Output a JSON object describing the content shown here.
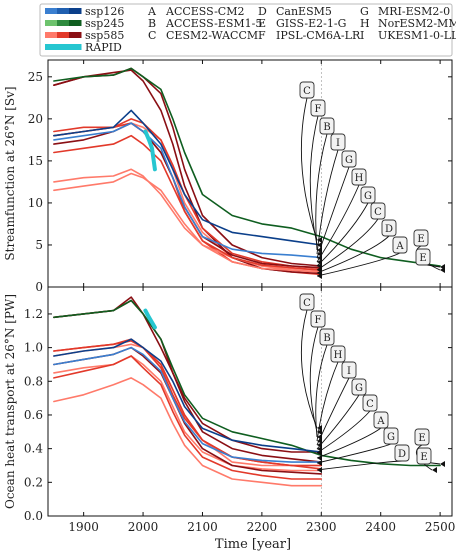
{
  "legend": {
    "scenarios": [
      {
        "name": "ssp126",
        "colors": [
          "#3a7fd0",
          "#1f5fb0",
          "#0b3f8a"
        ]
      },
      {
        "name": "ssp245",
        "colors": [
          "#6dc36d",
          "#2e8b3e",
          "#0f5e20"
        ]
      },
      {
        "name": "ssp585",
        "colors": [
          "#ff7a6a",
          "#e2392a",
          "#8a0f14"
        ]
      },
      {
        "name": "RAPID",
        "colors": [
          "#26c6d0"
        ]
      }
    ],
    "models": [
      {
        "letter": "A",
        "name": "ACCESS-CM2"
      },
      {
        "letter": "B",
        "name": "ACCESS-ESM1-5"
      },
      {
        "letter": "C",
        "name": "CESM2-WACCM"
      },
      {
        "letter": "D",
        "name": "CanESM5"
      },
      {
        "letter": "E",
        "name": "GISS-E2-1-G"
      },
      {
        "letter": "F",
        "name": "IPSL-CM6A-LR"
      },
      {
        "letter": "G",
        "name": "MRI-ESM2-0"
      },
      {
        "letter": "H",
        "name": "NorESM2-MM"
      },
      {
        "letter": "I",
        "name": "UKESM1-0-LL"
      }
    ]
  },
  "xlabel": "Time [year]",
  "chart_data": [
    {
      "type": "line",
      "ylabel": "Streamfunction at 26°N [Sv]",
      "xlim": [
        1840,
        2520
      ],
      "ylim": [
        0,
        27
      ],
      "xticks": [
        1900,
        2000,
        2100,
        2200,
        2300,
        2400,
        2500
      ],
      "yticks": [
        0,
        5,
        10,
        15,
        20,
        25
      ],
      "series": [
        {
          "model": "A",
          "scenario": "ssp585",
          "x": [
            1850,
            1900,
            1950,
            1980,
            2000,
            2030,
            2050,
            2070,
            2100,
            2150,
            2200,
            2250,
            2300
          ],
          "y": [
            18,
            18.5,
            19,
            19.5,
            19,
            17.5,
            14,
            10,
            6.5,
            3.5,
            2.5,
            2,
            1.8
          ]
        },
        {
          "model": "B",
          "scenario": "ssp585",
          "x": [
            1850,
            1900,
            1950,
            1980,
            2000,
            2030,
            2050,
            2070,
            2100,
            2150,
            2200,
            2250,
            2300
          ],
          "y": [
            18.5,
            19,
            19,
            19.5,
            18.5,
            16,
            13,
            9,
            5.5,
            3,
            2.2,
            1.8,
            1.5
          ]
        },
        {
          "model": "C",
          "scenario": "ssp585",
          "x": [
            1850,
            1900,
            1950,
            1980,
            2000,
            2030,
            2050,
            2070,
            2100,
            2150,
            2200,
            2250,
            2300
          ],
          "y": [
            24,
            25,
            25.5,
            25.8,
            24.5,
            21,
            17,
            12,
            7,
            3.5,
            2.2,
            1.8,
            1.6
          ]
        },
        {
          "model": "D",
          "scenario": "ssp585",
          "x": [
            1850,
            1900,
            1950,
            1980,
            2000,
            2030,
            2050,
            2070,
            2100,
            2150,
            2200,
            2250,
            2300
          ],
          "y": [
            11.5,
            12,
            12.5,
            13.5,
            13,
            11.5,
            9.5,
            7.5,
            5,
            3,
            2.2,
            2,
            1.8
          ]
        },
        {
          "model": "E",
          "scenario": "ssp585",
          "x": [
            1850,
            1900,
            1950,
            1980,
            2000,
            2030,
            2050,
            2070,
            2100,
            2150,
            2200,
            2250,
            2300
          ],
          "y": [
            24,
            25,
            25.2,
            26,
            25,
            23,
            19,
            14,
            8.5,
            5,
            3.5,
            2.8,
            2.5
          ]
        },
        {
          "model": "F",
          "scenario": "ssp585",
          "x": [
            1850,
            1900,
            1950,
            1980,
            2000,
            2030,
            2050,
            2070,
            2100,
            2150,
            2200,
            2250,
            2300
          ],
          "y": [
            12.5,
            13,
            13.2,
            14,
            13.2,
            11,
            9,
            7,
            5,
            3.5,
            2.5,
            2.2,
            2
          ]
        },
        {
          "model": "G",
          "scenario": "ssp585",
          "x": [
            1850,
            1900,
            1950,
            1980,
            2000,
            2030,
            2050,
            2070,
            2100,
            2150,
            2200,
            2250,
            2300
          ],
          "y": [
            16,
            16.5,
            17,
            18,
            17,
            15,
            12,
            9,
            5.5,
            3.5,
            2.6,
            2.3,
            2
          ]
        },
        {
          "model": "H",
          "scenario": "ssp585",
          "x": [
            1850,
            1900,
            1950,
            1980,
            2000,
            2030,
            2050,
            2070,
            2100,
            2150,
            2200,
            2250,
            2300
          ],
          "y": [
            18,
            18.5,
            19,
            20,
            19.5,
            17.5,
            14.5,
            11,
            7,
            4,
            3,
            2.5,
            2.2
          ]
        },
        {
          "model": "I",
          "scenario": "ssp585",
          "x": [
            1850,
            1900,
            1950,
            1980,
            2000,
            2030,
            2050,
            2070,
            2100,
            2150,
            2200,
            2250,
            2300
          ],
          "y": [
            17,
            17.5,
            18.5,
            19.5,
            18.5,
            16,
            13,
            9.5,
            6,
            3.8,
            2.8,
            2.5,
            2.3
          ]
        },
        {
          "model": "E",
          "scenario": "ssp245",
          "x": [
            1850,
            1900,
            1950,
            1980,
            2000,
            2030,
            2050,
            2070,
            2100,
            2150,
            2200,
            2250,
            2300,
            2350,
            2400,
            2450,
            2500
          ],
          "y": [
            24.5,
            25,
            25.2,
            26,
            25,
            23.5,
            20,
            16,
            11,
            8.5,
            7.5,
            7,
            6,
            4.5,
            3.5,
            3,
            2.5
          ]
        },
        {
          "model": "C",
          "scenario": "ssp126",
          "x": [
            1850,
            1900,
            1950,
            1980,
            2000,
            2030,
            2050,
            2070,
            2100,
            2150,
            2200,
            2250,
            2300
          ],
          "y": [
            18,
            18.5,
            19,
            21,
            19.5,
            17,
            14,
            11,
            8,
            6.5,
            6,
            5.5,
            5
          ]
        },
        {
          "model": "A",
          "scenario": "ssp126",
          "x": [
            1850,
            1900,
            1950,
            1980,
            2000,
            2030,
            2050,
            2070,
            2100,
            2150,
            2200,
            2250,
            2300
          ],
          "y": [
            17.5,
            18,
            18.5,
            19.5,
            18.5,
            16.5,
            13,
            9.5,
            6,
            4.5,
            4,
            3.8,
            3.5
          ]
        },
        {
          "model": "rapid",
          "scenario": "RAPID",
          "x": [
            2004,
            2010,
            2015,
            2020
          ],
          "y": [
            18.5,
            17.5,
            16.5,
            14
          ]
        }
      ],
      "labels": [
        "C",
        "F",
        "B",
        "I",
        "G",
        "H",
        "G",
        "C",
        "D",
        "A",
        "E",
        "E"
      ]
    },
    {
      "type": "line",
      "ylabel": "Ocean heat transport at 26°N [PW]",
      "xlim": [
        1840,
        2520
      ],
      "ylim": [
        0,
        1.36
      ],
      "xticks": [
        1900,
        2000,
        2100,
        2200,
        2300,
        2400,
        2500
      ],
      "yticks": [
        0.0,
        0.2,
        0.4,
        0.6,
        0.8,
        1.0,
        1.2
      ],
      "series": [
        {
          "model": "A",
          "scenario": "ssp585",
          "x": [
            1850,
            1900,
            1950,
            1980,
            2000,
            2030,
            2050,
            2070,
            2100,
            2150,
            2200,
            2250,
            2300
          ],
          "y": [
            0.95,
            0.98,
            1.0,
            1.02,
            1.0,
            0.9,
            0.75,
            0.6,
            0.45,
            0.32,
            0.3,
            0.3,
            0.3
          ]
        },
        {
          "model": "B",
          "scenario": "ssp585",
          "x": [
            1850,
            1900,
            1950,
            1980,
            2000,
            2030,
            2050,
            2070,
            2100,
            2150,
            2200,
            2250,
            2300
          ],
          "y": [
            0.98,
            1.0,
            1.02,
            1.04,
            1.0,
            0.88,
            0.72,
            0.58,
            0.45,
            0.35,
            0.32,
            0.3,
            0.3
          ]
        },
        {
          "model": "C",
          "scenario": "ssp585",
          "x": [
            1850,
            1900,
            1950,
            1980,
            2000,
            2030,
            2050,
            2070,
            2100,
            2150,
            2200,
            2250,
            2300
          ],
          "y": [
            1.18,
            1.2,
            1.22,
            1.3,
            1.2,
            1.0,
            0.85,
            0.7,
            0.55,
            0.45,
            0.4,
            0.38,
            0.38
          ]
        },
        {
          "model": "D",
          "scenario": "ssp585",
          "x": [
            1850,
            1900,
            1950,
            1980,
            2000,
            2030,
            2050,
            2070,
            2100,
            2150,
            2200,
            2250,
            2300
          ],
          "y": [
            0.68,
            0.72,
            0.78,
            0.82,
            0.78,
            0.7,
            0.55,
            0.42,
            0.3,
            0.22,
            0.2,
            0.18,
            0.18
          ]
        },
        {
          "model": "E",
          "scenario": "ssp585",
          "x": [
            1850,
            1900,
            1950,
            1980,
            2000,
            2030,
            2050,
            2070,
            2100,
            2150,
            2200,
            2250,
            2300
          ],
          "y": [
            1.18,
            1.2,
            1.22,
            1.28,
            1.2,
            1.05,
            0.85,
            0.68,
            0.5,
            0.4,
            0.36,
            0.34,
            0.32
          ]
        },
        {
          "model": "F",
          "scenario": "ssp585",
          "x": [
            1850,
            1900,
            1950,
            1980,
            2000,
            2030,
            2050,
            2070,
            2100,
            2150,
            2200,
            2250,
            2300
          ],
          "y": [
            0.85,
            0.88,
            0.9,
            0.95,
            0.9,
            0.8,
            0.65,
            0.5,
            0.38,
            0.3,
            0.28,
            0.27,
            0.27
          ]
        },
        {
          "model": "G",
          "scenario": "ssp585",
          "x": [
            1850,
            1900,
            1950,
            1980,
            2000,
            2030,
            2050,
            2070,
            2100,
            2150,
            2200,
            2250,
            2300
          ],
          "y": [
            0.82,
            0.86,
            0.9,
            0.95,
            0.88,
            0.78,
            0.62,
            0.48,
            0.35,
            0.27,
            0.24,
            0.22,
            0.22
          ]
        },
        {
          "model": "H",
          "scenario": "ssp585",
          "x": [
            1850,
            1900,
            1950,
            1980,
            2000,
            2030,
            2050,
            2070,
            2100,
            2150,
            2200,
            2250,
            2300
          ],
          "y": [
            0.98,
            1.0,
            1.02,
            1.05,
            1.0,
            0.9,
            0.75,
            0.6,
            0.45,
            0.35,
            0.32,
            0.3,
            0.28
          ]
        },
        {
          "model": "I",
          "scenario": "ssp585",
          "x": [
            1850,
            1900,
            1950,
            1980,
            2000,
            2030,
            2050,
            2070,
            2100,
            2150,
            2200,
            2250,
            2300
          ],
          "y": [
            0.9,
            0.93,
            0.96,
            1.0,
            0.95,
            0.85,
            0.7,
            0.55,
            0.4,
            0.3,
            0.27,
            0.26,
            0.25
          ]
        },
        {
          "model": "E",
          "scenario": "ssp245",
          "x": [
            1850,
            1900,
            1950,
            1980,
            2000,
            2030,
            2050,
            2070,
            2100,
            2150,
            2200,
            2250,
            2300,
            2350,
            2400,
            2450,
            2500
          ],
          "y": [
            1.18,
            1.2,
            1.22,
            1.28,
            1.2,
            1.05,
            0.88,
            0.72,
            0.58,
            0.5,
            0.46,
            0.42,
            0.36,
            0.33,
            0.31,
            0.3,
            0.3
          ]
        },
        {
          "model": "C",
          "scenario": "ssp126",
          "x": [
            1850,
            1900,
            1950,
            1980,
            2000,
            2030,
            2050,
            2070,
            2100,
            2150,
            2200,
            2250,
            2300
          ],
          "y": [
            0.95,
            0.98,
            1.0,
            1.05,
            1.0,
            0.92,
            0.8,
            0.65,
            0.52,
            0.45,
            0.42,
            0.4,
            0.38
          ]
        },
        {
          "model": "A",
          "scenario": "ssp126",
          "x": [
            1850,
            1900,
            1950,
            1980,
            2000,
            2030,
            2050,
            2070,
            2100,
            2150,
            2200,
            2250,
            2300
          ],
          "y": [
            0.9,
            0.93,
            0.96,
            1.0,
            0.96,
            0.86,
            0.7,
            0.56,
            0.43,
            0.35,
            0.33,
            0.32,
            0.32
          ]
        },
        {
          "model": "rapid",
          "scenario": "RAPID",
          "x": [
            2004,
            2010,
            2015,
            2020
          ],
          "y": [
            1.22,
            1.18,
            1.15,
            1.12
          ]
        }
      ],
      "labels": [
        "C",
        "F",
        "B",
        "H",
        "I",
        "G",
        "C",
        "A",
        "G",
        "D",
        "E",
        "E"
      ]
    }
  ]
}
